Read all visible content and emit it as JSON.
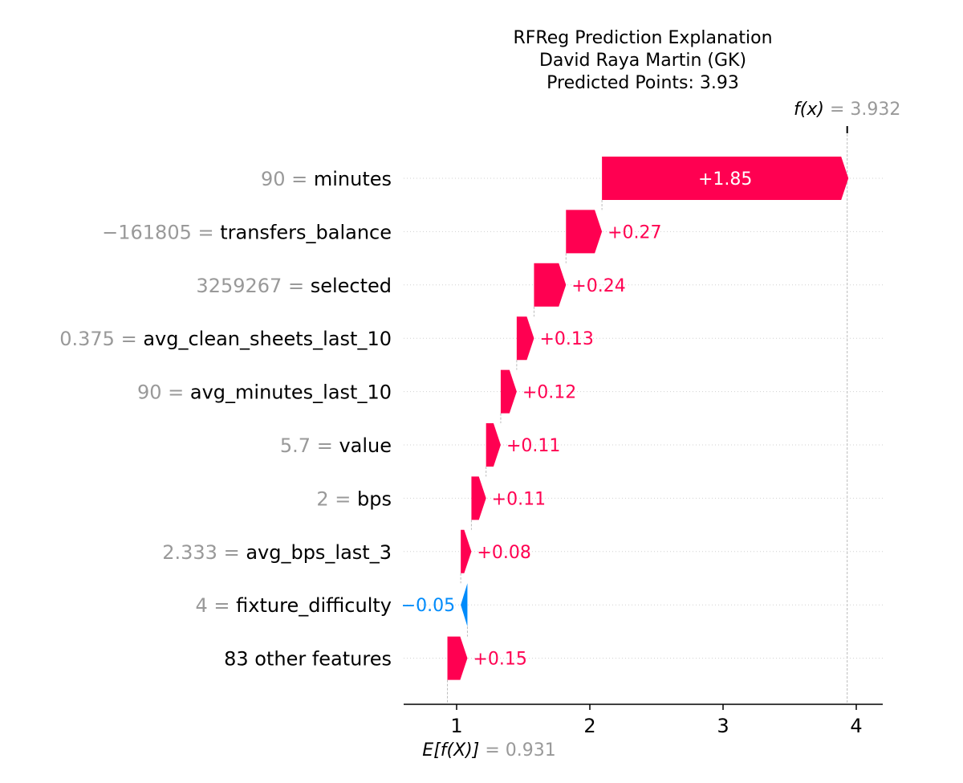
{
  "chart_data": {
    "type": "waterfall",
    "title_lines": [
      "RFReg Prediction Explanation",
      "David Raya Martin (GK)",
      "Predicted Points: 3.93"
    ],
    "base_value": 0.931,
    "base_label_symbol": "E[f(X)]",
    "base_label_value": "= 0.931",
    "final_value": 3.932,
    "final_label_symbol": "f(x)",
    "final_label_value": "= 3.932",
    "x_ticks": [
      1,
      2,
      3,
      4
    ],
    "x_tick_labels": [
      "1",
      "2",
      "3",
      "4"
    ],
    "xlim": [
      0.6,
      4.13
    ],
    "features": [
      {
        "value_text": "90 =",
        "name": "minutes",
        "contribution": 1.85,
        "label": "+1.85"
      },
      {
        "value_text": "−161805 =",
        "name": "transfers_balance",
        "contribution": 0.27,
        "label": "+0.27"
      },
      {
        "value_text": "3259267 =",
        "name": "selected",
        "contribution": 0.24,
        "label": "+0.24"
      },
      {
        "value_text": "0.375 =",
        "name": "avg_clean_sheets_last_10",
        "contribution": 0.13,
        "label": "+0.13"
      },
      {
        "value_text": "90 =",
        "name": "avg_minutes_last_10",
        "contribution": 0.12,
        "label": "+0.12"
      },
      {
        "value_text": "5.7 =",
        "name": "value",
        "contribution": 0.11,
        "label": "+0.11"
      },
      {
        "value_text": "2 =",
        "name": "bps",
        "contribution": 0.11,
        "label": "+0.11"
      },
      {
        "value_text": "2.333 =",
        "name": "avg_bps_last_3",
        "contribution": 0.08,
        "label": "+0.08"
      },
      {
        "value_text": "4 =",
        "name": "fixture_difficulty",
        "contribution": -0.05,
        "label": "−0.05"
      },
      {
        "value_text": "",
        "name": "83 other features",
        "contribution": 0.15,
        "label": "+0.15"
      }
    ],
    "colors": {
      "positive": "#ff0051",
      "negative": "#008bfb",
      "muted": "#999999",
      "grid": "#cccccc"
    }
  }
}
